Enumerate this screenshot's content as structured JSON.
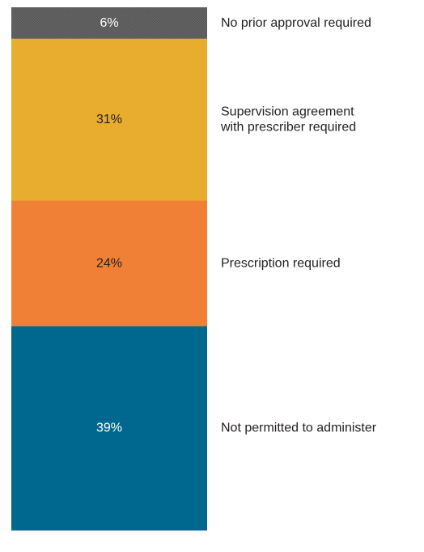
{
  "chart_data": {
    "type": "bar",
    "stacked": true,
    "unit": "%",
    "series": [
      {
        "label": "No prior approval required",
        "value": 6,
        "color": "#555555",
        "text_color": "#ffffff",
        "hatched": true
      },
      {
        "label": "Supervision agreement with prescriber required",
        "value": 31,
        "color": "#e8ad2f",
        "text_color": "#231f20"
      },
      {
        "label": "Prescription required",
        "value": 24,
        "color": "#f08036",
        "text_color": "#231f20"
      },
      {
        "label": "Not permitted to administer",
        "value": 39,
        "color": "#00688f",
        "text_color": "#ffffff"
      }
    ]
  }
}
